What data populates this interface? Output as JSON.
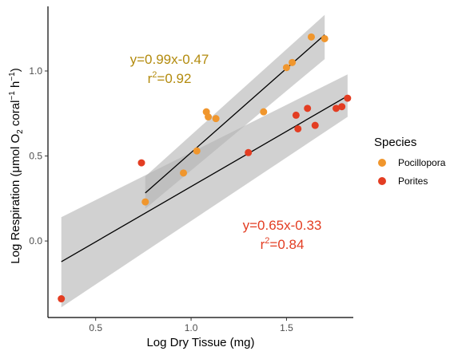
{
  "chart_data": {
    "type": "scatter",
    "xlabel": "Log Dry Tissue (mg)",
    "ylabel": {
      "prefix": "Log Respiration (",
      "mu": "μ",
      "mol": "mol O",
      "sub2": "2",
      "coral": " coral",
      "sup_m1": "−1",
      "h": " h",
      "sup_m1b": "−1",
      "suffix": ")"
    },
    "xlim": [
      0.25,
      1.85
    ],
    "ylim": [
      -0.45,
      1.38
    ],
    "xticks": [
      0.5,
      1.0,
      1.5
    ],
    "xtick_labels": [
      "0.5",
      "1.0",
      "1.5"
    ],
    "yticks": [
      0.0,
      0.5,
      1.0
    ],
    "ytick_labels": [
      "0.0",
      "0.5",
      "1.0"
    ],
    "legend": {
      "title": "Species",
      "position": "right"
    },
    "grid": false,
    "series": [
      {
        "name": "Pocillopora",
        "color": "#F0962D",
        "points": [
          {
            "x": 0.76,
            "y": 0.23
          },
          {
            "x": 0.96,
            "y": 0.4
          },
          {
            "x": 1.03,
            "y": 0.53
          },
          {
            "x": 1.08,
            "y": 0.76
          },
          {
            "x": 1.09,
            "y": 0.73
          },
          {
            "x": 1.13,
            "y": 0.72
          },
          {
            "x": 1.38,
            "y": 0.76
          },
          {
            "x": 1.5,
            "y": 1.02
          },
          {
            "x": 1.53,
            "y": 1.05
          },
          {
            "x": 1.63,
            "y": 1.2
          },
          {
            "x": 1.7,
            "y": 1.19
          }
        ],
        "fit": {
          "x_range": [
            0.76,
            1.7
          ],
          "band_low": [
            0.19,
            1.07
          ],
          "band_high": [
            0.38,
            1.33
          ]
        },
        "equation": "y=0.99x-0.47",
        "r2_prefix": "r",
        "r2_sup": "2",
        "r2_value": "=0.92",
        "label_color": "#B38B0E"
      },
      {
        "name": "Porites",
        "color": "#E33D22",
        "points": [
          {
            "x": 0.32,
            "y": -0.34
          },
          {
            "x": 0.74,
            "y": 0.46
          },
          {
            "x": 1.3,
            "y": 0.52
          },
          {
            "x": 1.55,
            "y": 0.74
          },
          {
            "x": 1.56,
            "y": 0.66
          },
          {
            "x": 1.61,
            "y": 0.78
          },
          {
            "x": 1.65,
            "y": 0.68
          },
          {
            "x": 1.76,
            "y": 0.78
          },
          {
            "x": 1.79,
            "y": 0.79
          },
          {
            "x": 1.82,
            "y": 0.84
          }
        ],
        "fit": {
          "x_range": [
            0.32,
            1.82
          ],
          "band_low": [
            -0.39,
            0.73
          ],
          "band_high": [
            0.14,
            0.98
          ]
        },
        "equation": "y=0.65x-0.33",
        "r2_prefix": "r",
        "r2_sup": "2",
        "r2_value": "=0.84",
        "label_color": "#E33D22"
      }
    ]
  }
}
